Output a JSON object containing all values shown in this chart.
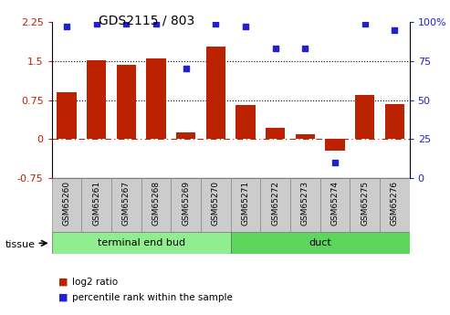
{
  "title": "GDS2115 / 803",
  "samples": [
    "GSM65260",
    "GSM65261",
    "GSM65267",
    "GSM65268",
    "GSM65269",
    "GSM65270",
    "GSM65271",
    "GSM65272",
    "GSM65273",
    "GSM65274",
    "GSM65275",
    "GSM65276"
  ],
  "log2_ratio": [
    0.9,
    1.52,
    1.42,
    1.55,
    0.12,
    1.78,
    0.65,
    0.22,
    0.1,
    -0.22,
    0.85,
    0.68
  ],
  "percentile_rank_vals": [
    97,
    99,
    99,
    99,
    70,
    99,
    97,
    83,
    83,
    10,
    99,
    95
  ],
  "bar_color": "#bb2200",
  "dot_color": "#2222cc",
  "ylim_left": [
    -0.75,
    2.25
  ],
  "ylim_right": [
    0,
    100
  ],
  "yticks_left": [
    -0.75,
    0,
    0.75,
    1.5,
    2.25
  ],
  "yticks_right": [
    0,
    25,
    50,
    75,
    100
  ],
  "hlines": [
    0.75,
    1.5
  ],
  "groups": [
    {
      "label": "terminal end bud",
      "start": 0,
      "end": 6,
      "color": "#90ee90"
    },
    {
      "label": "duct",
      "start": 6,
      "end": 12,
      "color": "#5cd65c"
    }
  ],
  "tissue_label": "tissue",
  "label_box_color": "#cccccc",
  "legend_items": [
    {
      "color": "#bb2200",
      "label": "log2 ratio"
    },
    {
      "color": "#2222cc",
      "label": "percentile rank within the sample"
    }
  ]
}
